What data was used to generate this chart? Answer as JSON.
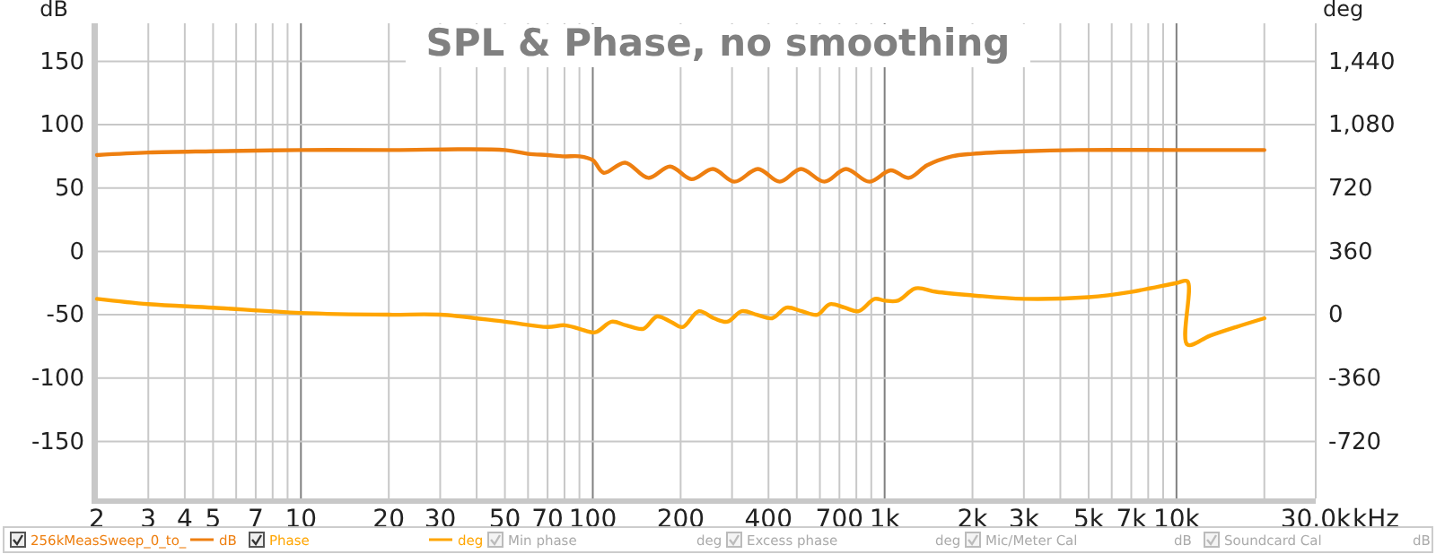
{
  "chart_data": {
    "type": "line",
    "title": "SPL & Phase, no smoothing",
    "ylabel": "dB",
    "y2label": "deg",
    "xlim": [
      2,
      30000
    ],
    "ylim": [
      -195,
      180
    ],
    "y2lim": [
      -1044,
      1656
    ],
    "log": "x",
    "grid": true,
    "legend": "bottom",
    "xticks": [
      2,
      3,
      4,
      5,
      {
        "value": 6,
        "label": null
      },
      7,
      {
        "value": 8,
        "label": null
      },
      {
        "value": 9,
        "label": null
      },
      10,
      20,
      30,
      {
        "value": 40,
        "label": null
      },
      50,
      {
        "value": 60,
        "label": null
      },
      70,
      {
        "value": 80,
        "label": null
      },
      {
        "value": 90,
        "label": null
      },
      100,
      200,
      {
        "value": 300,
        "label": null
      },
      400,
      {
        "value": 500,
        "label": null
      },
      {
        "value": 600,
        "label": null
      },
      700,
      {
        "value": 800,
        "label": null
      },
      {
        "value": 900,
        "label": null
      },
      {
        "value": 1000,
        "label": "1k"
      },
      {
        "value": 2000,
        "label": "2k"
      },
      {
        "value": 3000,
        "label": "3k"
      },
      {
        "value": 4000,
        "label": null
      },
      {
        "value": 5000,
        "label": "5k"
      },
      {
        "value": 6000,
        "label": null
      },
      {
        "value": 7000,
        "label": "7k"
      },
      {
        "value": 8000,
        "label": null
      },
      {
        "value": 9000,
        "label": null
      },
      {
        "value": 10000,
        "label": "10k"
      },
      {
        "value": 20000,
        "label": null
      },
      {
        "value": 30000,
        "label": "30.0k"
      }
    ],
    "xlabel": "kHz",
    "yticks": [
      -150,
      -100,
      -50,
      0,
      50,
      100,
      150
    ],
    "y2ticks": [
      -720,
      -360,
      0,
      360,
      720,
      {
        "value": 1080,
        "label": "1,080"
      },
      {
        "value": 1440,
        "label": "1,440"
      }
    ],
    "series": [
      {
        "name": "256kMeasSweep_0_to_",
        "color": "#ee7f10",
        "x": [
          2,
          3,
          5,
          10,
          20,
          50,
          60,
          70,
          80,
          90,
          100,
          109,
          129,
          155,
          184,
          218,
          258,
          306,
          368,
          437,
          517,
          622,
          737,
          886,
          1050,
          1210,
          1400,
          1700,
          2000,
          3000,
          4600,
          10000,
          20000
        ],
        "values": [
          76,
          78,
          79,
          80,
          80,
          80,
          77,
          76,
          75,
          75,
          72,
          62,
          70,
          58,
          67,
          57,
          65,
          55,
          65,
          55,
          65,
          55,
          65,
          55,
          64,
          58,
          68,
          75,
          77,
          79,
          80,
          80,
          80
        ]
      },
      {
        "name": "Phase",
        "color": "#ffa500",
        "axis": "y2",
        "x": [
          2,
          3,
          5,
          10,
          20,
          30,
          50,
          70,
          80,
          90,
          102,
          116,
          130,
          149,
          166,
          185,
          203,
          231,
          260,
          289,
          324,
          365,
          412,
          461,
          520,
          588,
          649,
          730,
          814,
          925,
          1000,
          1111,
          1278,
          1500,
          2000,
          3000,
          5000,
          7000,
          10000,
          10900,
          10900,
          13000,
          16000,
          20000
        ],
        "values": [
          90,
          60,
          40,
          10,
          0,
          0,
          -40,
          -70,
          -60,
          -80,
          -100,
          -40,
          -60,
          -80,
          -10,
          -40,
          -70,
          20,
          -20,
          -40,
          20,
          0,
          -20,
          40,
          20,
          0,
          60,
          40,
          20,
          90,
          80,
          80,
          150,
          130,
          110,
          90,
          100,
          130,
          180,
          190,
          -170,
          -120,
          -70,
          -20
        ]
      }
    ],
    "annotations": [
      "dB",
      "deg",
      "Min phase",
      "deg",
      "Excess phase",
      "deg",
      "Mic/Meter Cal",
      "dB",
      "Soundcard Cal",
      "dB"
    ]
  }
}
